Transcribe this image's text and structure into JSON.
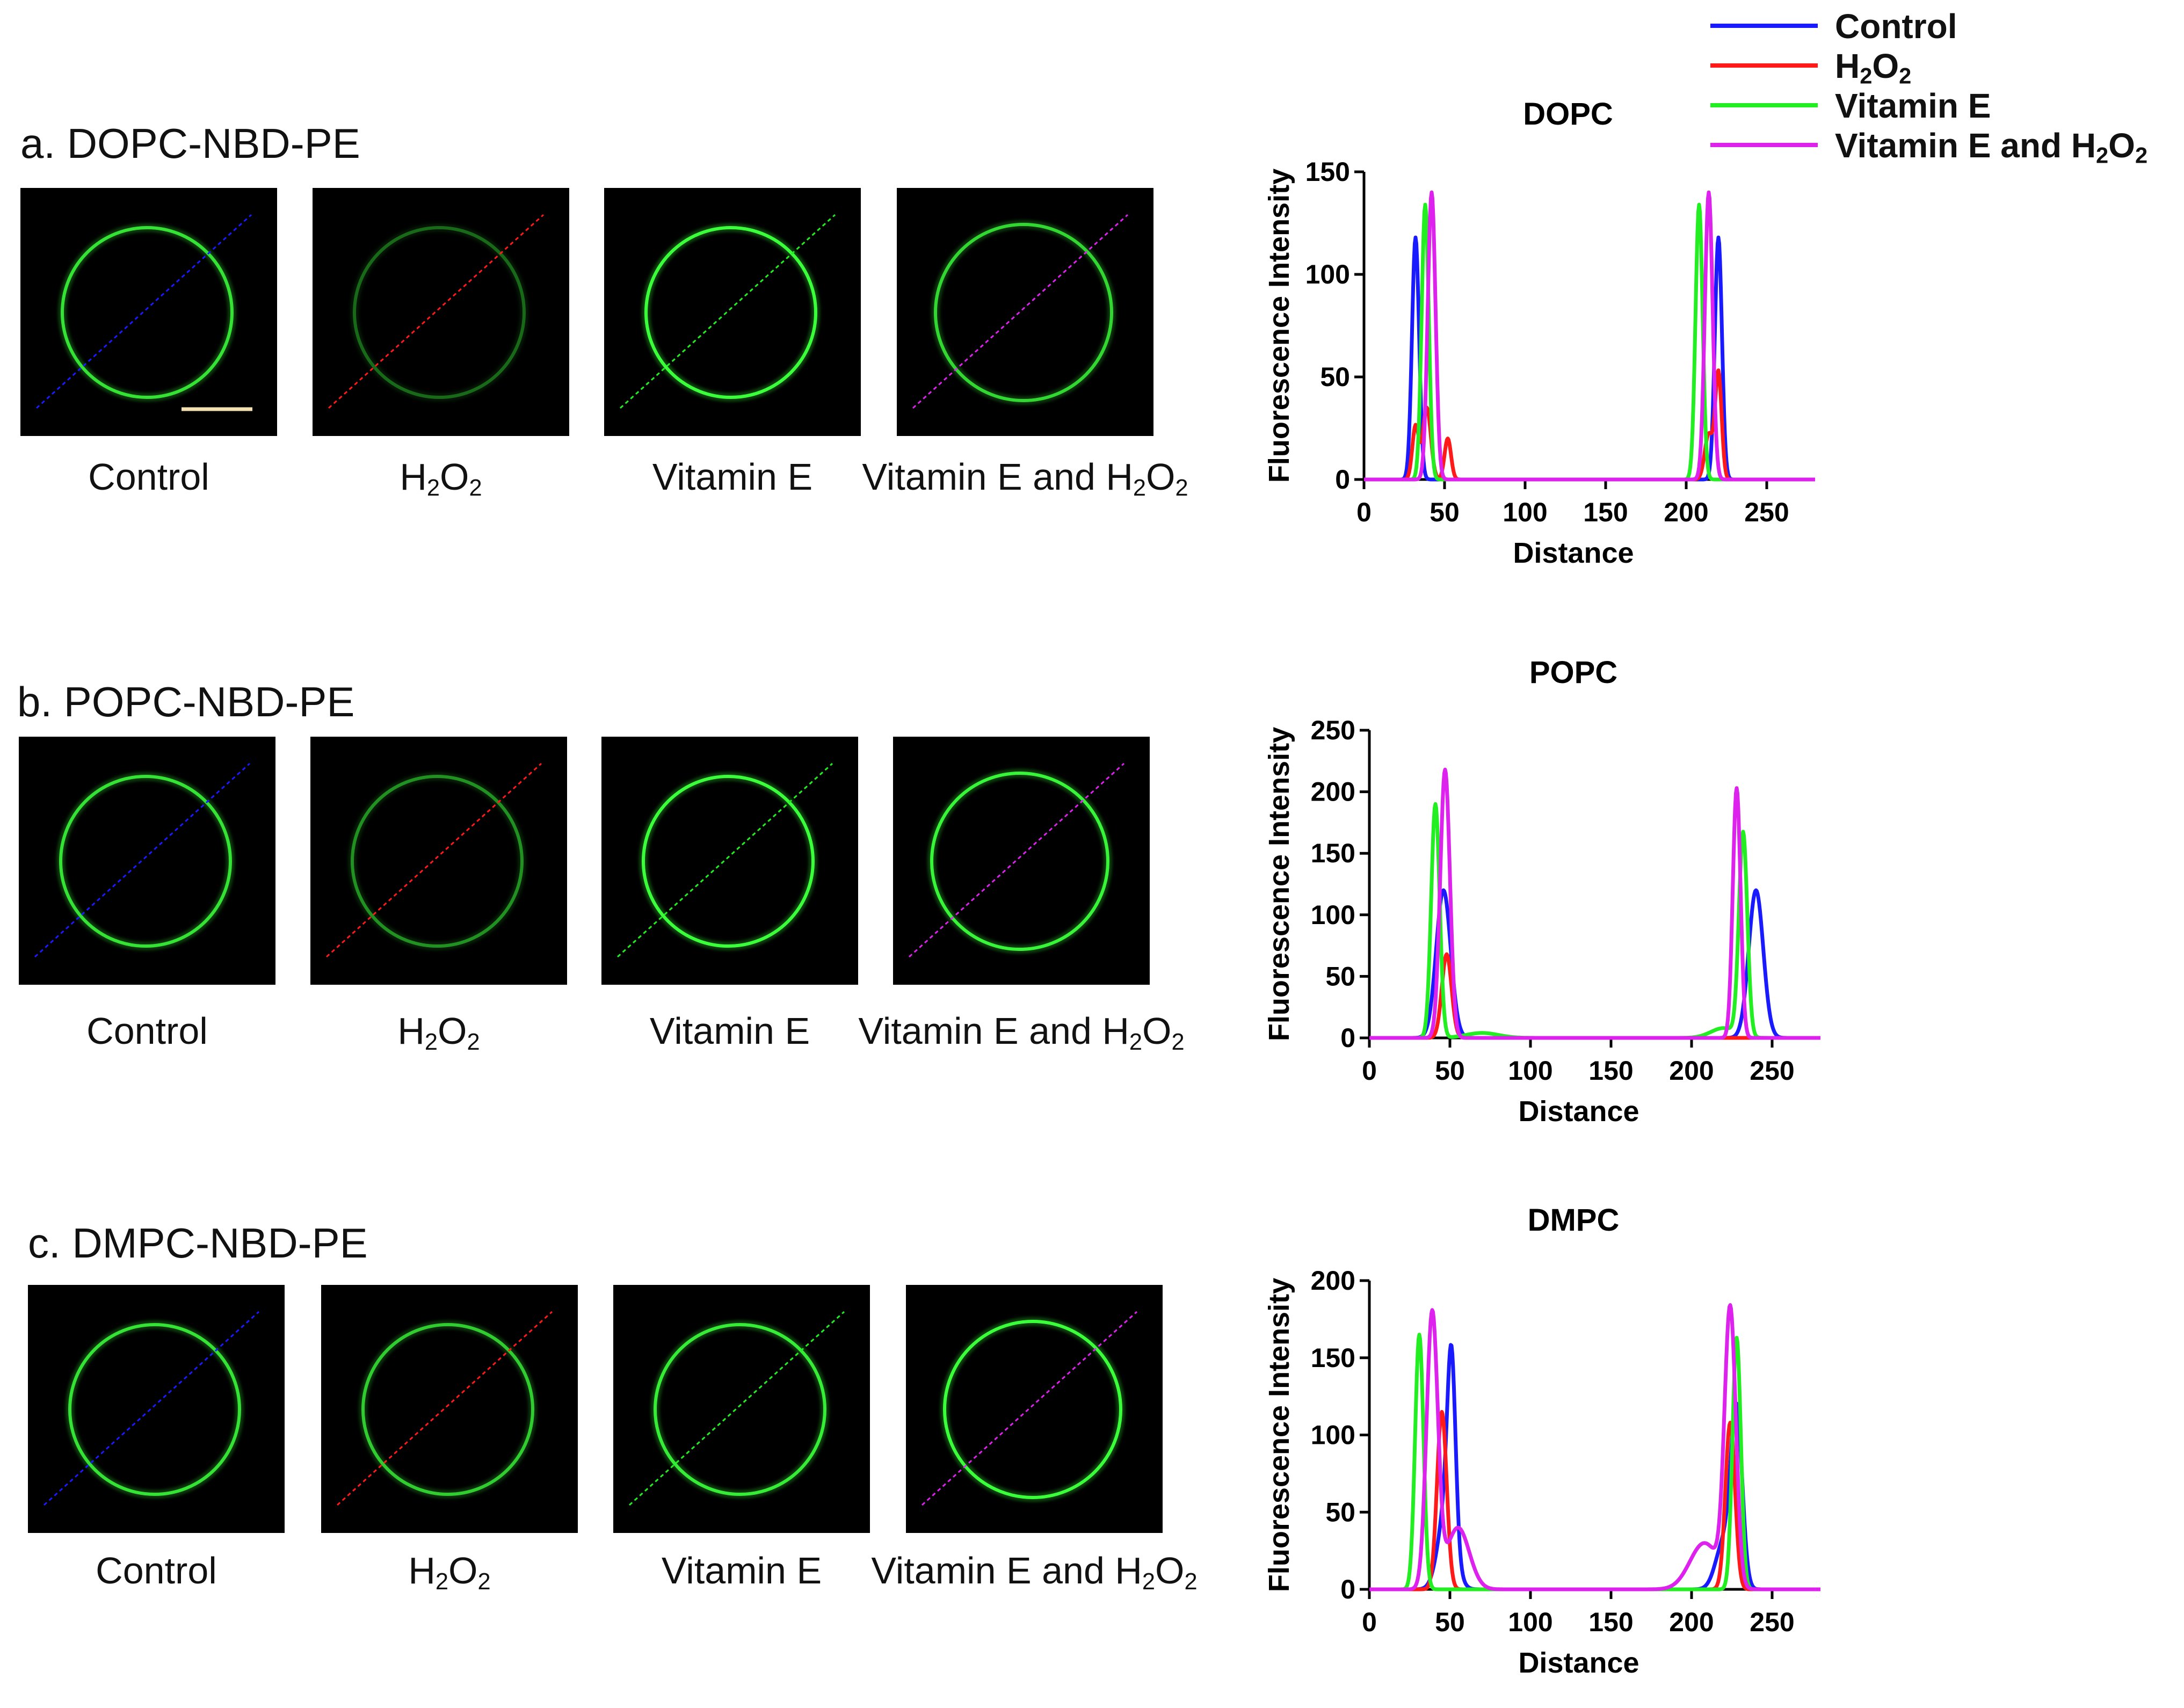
{
  "rows": [
    {
      "title": "a. DOPC-NBD-PE"
    },
    {
      "title": "b. POPC-NBD-PE"
    },
    {
      "title": "c. DMPC-NBD-PE"
    }
  ],
  "conditions": [
    {
      "key": "control",
      "label": "Control",
      "label_html": "Control",
      "color": "#1a1aff"
    },
    {
      "key": "h2o2",
      "label": "H2O2",
      "label_html": "H<sub>2</sub>O<sub>2</sub>",
      "color": "#ff1a1a"
    },
    {
      "key": "vitamin_e",
      "label": "Vitamin E",
      "label_html": "Vitamin E",
      "color": "#22ee22"
    },
    {
      "key": "vitamin_e_h2o2",
      "label": "Vitamin E and H2O2",
      "label_html": "Vitamin E and H<sub>2</sub>O<sub>2</sub>",
      "color": "#dd22ee"
    }
  ],
  "legend": [
    {
      "label": "Control",
      "label_html": "Control",
      "color": "#1a1aff"
    },
    {
      "label": "H2O2",
      "label_html": "H<sub>2</sub>O<sub>2</sub>",
      "color": "#ff1a1a"
    },
    {
      "label": "Vitamin E",
      "label_html": "Vitamin E",
      "color": "#22ee22"
    },
    {
      "label": "Vitamin E and H2O2",
      "label_html": "Vitamin E and H<sub>2</sub>O<sub>2</sub>",
      "color": "#dd22ee"
    }
  ],
  "micrograph_brightness": [
    [
      0.85,
      0.35,
      1.0,
      0.8
    ],
    [
      0.85,
      0.5,
      1.0,
      0.95
    ],
    [
      0.85,
      0.75,
      0.9,
      1.0
    ]
  ],
  "chart_data": [
    {
      "type": "line",
      "title": "DOPC",
      "xlabel": "Distance",
      "ylabel": "Fluorescence Intensity",
      "xlim": [
        0,
        280
      ],
      "ylim": [
        0,
        150
      ],
      "xticks": [
        0,
        50,
        100,
        150,
        200,
        250
      ],
      "yticks": [
        0,
        50,
        100,
        150
      ],
      "series": [
        {
          "name": "Control",
          "color": "#1a1aff",
          "peaks": [
            [
              32,
              118,
              2.2
            ],
            [
              220,
              118,
              2.2
            ]
          ],
          "range": [
            0,
            280
          ]
        },
        {
          "name": "H2O2",
          "color": "#ff1a1a",
          "peaks": [
            [
              32,
              26,
              2
            ],
            [
              39,
              35,
              2.5
            ],
            [
              52,
              20,
              2
            ],
            [
              214,
              22,
              2.5
            ],
            [
              220,
              52,
              2
            ]
          ],
          "range": [
            0,
            280
          ]
        },
        {
          "name": "Vitamin E",
          "color": "#22ee22",
          "peaks": [
            [
              38,
              134,
              2.2
            ],
            [
              208,
              134,
              2.2
            ]
          ],
          "range": [
            0,
            280
          ]
        },
        {
          "name": "Vitamin E and H2O2",
          "color": "#dd22ee",
          "peaks": [
            [
              42,
              140,
              2.4
            ],
            [
              214,
              140,
              2.4
            ]
          ],
          "range": [
            0,
            280
          ]
        }
      ]
    },
    {
      "type": "line",
      "title": "POPC",
      "xlabel": "Distance",
      "ylabel": "Fluorescence Intensity",
      "xlim": [
        0,
        280
      ],
      "ylim": [
        0,
        250
      ],
      "xticks": [
        0,
        50,
        100,
        150,
        200,
        250
      ],
      "yticks": [
        0,
        50,
        100,
        150,
        200,
        250
      ],
      "series": [
        {
          "name": "Control",
          "color": "#1a1aff",
          "peaks": [
            [
              46,
              120,
              4.5
            ],
            [
              240,
              120,
              4.5
            ]
          ],
          "range": [
            0,
            280
          ]
        },
        {
          "name": "H2O2",
          "color": "#ff1a1a",
          "peaks": [
            [
              48,
              68,
              3
            ]
          ],
          "range": [
            0,
            280
          ]
        },
        {
          "name": "Vitamin E",
          "color": "#22ee22",
          "peaks": [
            [
              41,
              190,
              2.6
            ],
            [
              232,
              165,
              2.6
            ],
            [
              220,
              8,
              8
            ],
            [
              70,
              4,
              10
            ]
          ],
          "range": [
            0,
            280
          ]
        },
        {
          "name": "Vitamin E and H2O2",
          "color": "#dd22ee",
          "peaks": [
            [
              47,
              218,
              3
            ],
            [
              228,
              203,
              2.4
            ]
          ],
          "range": [
            0,
            280
          ]
        }
      ]
    },
    {
      "type": "line",
      "title": "DMPC",
      "xlabel": "Distance",
      "ylabel": "Fluorescence Intensity",
      "xlim": [
        0,
        280
      ],
      "ylim": [
        0,
        200
      ],
      "xticks": [
        0,
        50,
        100,
        150,
        200,
        250
      ],
      "yticks": [
        0,
        50,
        100,
        150,
        200
      ],
      "series": [
        {
          "name": "Control",
          "color": "#1a1aff",
          "peaks": [
            [
              51,
              112,
              2.5
            ],
            [
              48,
              55,
              5
            ],
            [
              228,
              112,
              3.5
            ],
            [
              220,
              30,
              5
            ]
          ],
          "range": [
            0,
            280
          ]
        },
        {
          "name": "H2O2",
          "color": "#ff1a1a",
          "peaks": [
            [
              45,
              115,
              3
            ],
            [
              224,
              108,
              3
            ]
          ],
          "range": [
            0,
            280
          ]
        },
        {
          "name": "Vitamin E",
          "color": "#22ee22",
          "peaks": [
            [
              31,
              165,
              2.6
            ],
            [
              228,
              163,
              2.6
            ]
          ],
          "range": [
            0,
            280
          ]
        },
        {
          "name": "Vitamin E and H2O2",
          "color": "#dd22ee",
          "peaks": [
            [
              39,
              178,
              3.5
            ],
            [
              55,
              40,
              7
            ],
            [
              224,
              178,
              3.5
            ],
            [
              208,
              30,
              9
            ]
          ],
          "range": [
            0,
            280
          ]
        }
      ]
    }
  ]
}
